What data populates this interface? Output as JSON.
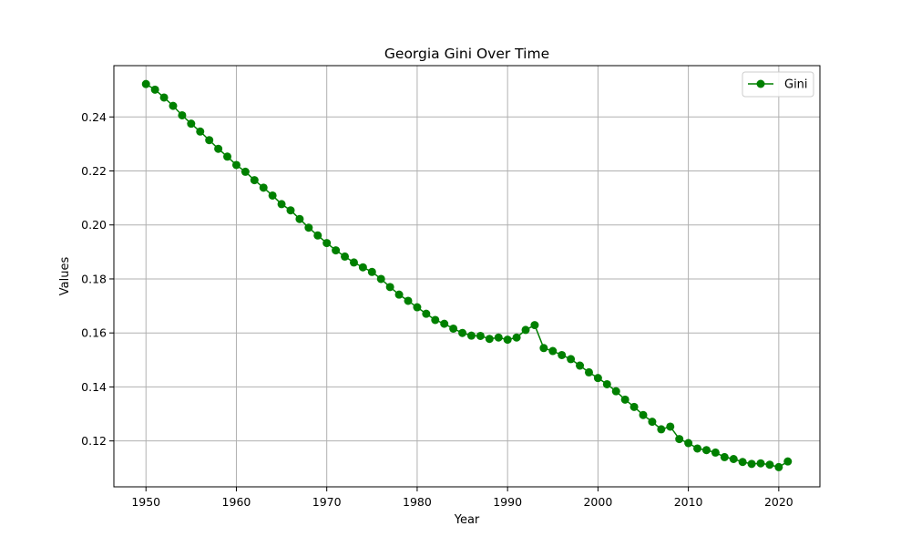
{
  "chart_data": {
    "type": "line",
    "title": "Georgia Gini Over Time",
    "xlabel": "Year",
    "ylabel": "Values",
    "xlim": [
      1946.45,
      2024.55
    ],
    "ylim": [
      0.103,
      0.259
    ],
    "xticks": [
      1950,
      1960,
      1970,
      1980,
      1990,
      2000,
      2010,
      2020
    ],
    "yticks": [
      0.12,
      0.14,
      0.16,
      0.18,
      0.2,
      0.22,
      0.24
    ],
    "ytick_labels": [
      "0.12",
      "0.14",
      "0.16",
      "0.18",
      "0.20",
      "0.22",
      "0.24"
    ],
    "grid": true,
    "legend_position": "top-right",
    "colors": {
      "series": "#008000",
      "grid": "#b0b0b0",
      "axes": "#000000"
    },
    "series": [
      {
        "name": "Gini",
        "x": [
          1950,
          1951,
          1952,
          1953,
          1954,
          1955,
          1956,
          1957,
          1958,
          1959,
          1960,
          1961,
          1962,
          1963,
          1964,
          1965,
          1966,
          1967,
          1968,
          1969,
          1970,
          1971,
          1972,
          1973,
          1974,
          1975,
          1976,
          1977,
          1978,
          1979,
          1980,
          1981,
          1982,
          1983,
          1984,
          1985,
          1986,
          1987,
          1988,
          1989,
          1990,
          1991,
          1992,
          1993,
          1994,
          1995,
          1996,
          1997,
          1998,
          1999,
          2000,
          2001,
          2002,
          2003,
          2004,
          2005,
          2006,
          2007,
          2008,
          2009,
          2010,
          2011,
          2012,
          2013,
          2014,
          2015,
          2016,
          2017,
          2018,
          2019,
          2020,
          2021
        ],
        "y": [
          0.2522,
          0.2501,
          0.2472,
          0.2441,
          0.2406,
          0.2375,
          0.2346,
          0.2314,
          0.2282,
          0.2253,
          0.2222,
          0.2197,
          0.2166,
          0.2138,
          0.2109,
          0.2077,
          0.2054,
          0.2022,
          0.199,
          0.1961,
          0.1933,
          0.1906,
          0.1883,
          0.1861,
          0.1843,
          0.1826,
          0.18,
          0.177,
          0.1742,
          0.1719,
          0.1695,
          0.1671,
          0.1648,
          0.1634,
          0.1616,
          0.16,
          0.159,
          0.1589,
          0.1578,
          0.1583,
          0.1575,
          0.1583,
          0.1611,
          0.1629,
          0.1544,
          0.1533,
          0.1518,
          0.1503,
          0.1479,
          0.1454,
          0.1433,
          0.141,
          0.1384,
          0.1353,
          0.1326,
          0.1296,
          0.1271,
          0.1243,
          0.1253,
          0.1207,
          0.1192,
          0.1172,
          0.1166,
          0.1157,
          0.114,
          0.1133,
          0.1122,
          0.1115,
          0.1117,
          0.1112,
          0.1103,
          0.1124
        ]
      }
    ]
  }
}
